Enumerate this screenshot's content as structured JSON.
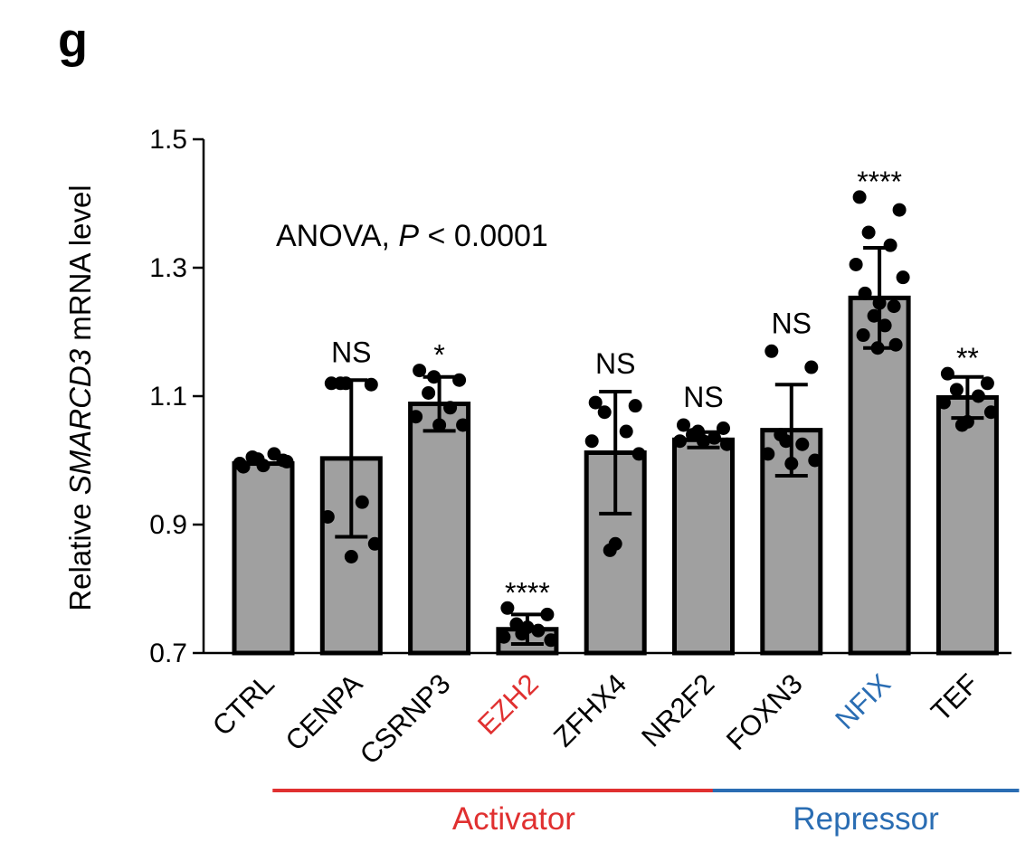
{
  "panel_letter": "g",
  "colors": {
    "bar_fill": "#a0a0a0",
    "activator": "#e03030",
    "repressor": "#2a6db3",
    "default_text": "#000000"
  },
  "chart_data": {
    "type": "bar",
    "ylabel_prefix": "Relative ",
    "ylabel_italic": "SMARCD3",
    "ylabel_suffix": " mRNA level",
    "ylim": [
      0.7,
      1.5
    ],
    "yticks": [
      "0.7",
      "0.9",
      "1.1",
      "1.3",
      "1.5"
    ],
    "annotation_prefix": "ANOVA, ",
    "annotation_italic": "P",
    "annotation_suffix": " < 0.0001",
    "categories": [
      "CTRL",
      "CENPA",
      "CSRNP3",
      "EZH2",
      "ZFHX4",
      "NR2F2",
      "FOXN3",
      "NFIX",
      "TEF"
    ],
    "category_colors": [
      "#000000",
      "#000000",
      "#000000",
      "#e03030",
      "#000000",
      "#000000",
      "#000000",
      "#2a6db3",
      "#000000"
    ],
    "values": [
      0.995,
      1.003,
      1.088,
      0.737,
      1.012,
      1.032,
      1.047,
      1.253,
      1.098
    ],
    "error": [
      0.0,
      0.122,
      0.042,
      0.023,
      0.095,
      0.012,
      0.071,
      0.078,
      0.032
    ],
    "significance": [
      "",
      "NS",
      "*",
      "****",
      "NS",
      "NS",
      "NS",
      "****",
      "**"
    ],
    "points": [
      [
        0.99,
        1.0,
        1.005,
        1.01,
        0.995,
        0.998,
        0.992,
        1.002
      ],
      [
        1.12,
        1.118,
        1.12,
        0.935,
        0.912,
        0.87,
        0.85,
        1.12
      ],
      [
        1.14,
        1.125,
        1.105,
        1.082,
        1.068,
        1.055,
        1.055,
        1.13
      ],
      [
        0.77,
        0.76,
        0.745,
        0.735,
        0.725,
        0.72,
        0.74,
        0.73
      ],
      [
        1.09,
        1.085,
        1.075,
        1.045,
        1.03,
        1.01,
        0.87,
        0.86
      ],
      [
        1.055,
        1.05,
        1.04,
        1.035,
        1.03,
        1.025,
        1.03,
        1.045
      ],
      [
        1.17,
        1.145,
        1.04,
        1.025,
        1.01,
        1.0,
        0.995,
        1.03
      ],
      [
        1.41,
        1.39,
        1.355,
        1.335,
        1.305,
        1.285,
        1.245,
        1.225,
        1.21,
        1.195,
        1.18,
        1.175,
        1.24,
        1.26
      ],
      [
        1.135,
        1.12,
        1.11,
        1.1,
        1.09,
        1.075,
        1.06,
        1.055
      ]
    ],
    "groups": [
      {
        "name": "Activator",
        "from": 1,
        "to": 5,
        "color": "#e03030"
      },
      {
        "name": "Repressor",
        "from": 6,
        "to": 8,
        "color": "#2a6db3"
      }
    ]
  }
}
